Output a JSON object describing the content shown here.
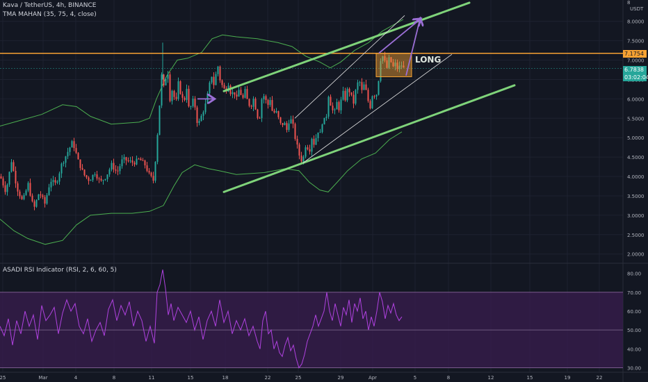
{
  "header": {
    "symbol_line": "Kava / TetherUS, 4h, BINANCE",
    "indicator_line": "TMA MAHAN (35, 75, 4, close)",
    "rsi_line": "ASADI RSI Indicator (RSI, 2, 6, 60, 5)"
  },
  "currency_label": "USDT",
  "annotation_text": "LONG",
  "price_labels": {
    "resistance": "7.1754",
    "last": "6.7838",
    "countdown": "03:02:04"
  },
  "colors": {
    "background": "#131722",
    "up_candle": "#26a69a",
    "down_candle": "#ef5350",
    "envelope": "#4caf50",
    "trendline": "#7fd37a",
    "resistance": "#f7a233",
    "arrow": "#9b6fd6",
    "rsi_line": "#b042e0",
    "rsi_band": "#3a1d4f"
  },
  "chart_data": [
    {
      "type": "candlestick",
      "title": "",
      "x_ticks": [
        "25",
        "Mar",
        "4",
        "8",
        "11",
        "15",
        "18",
        "22",
        "25",
        "29",
        "Apr",
        "5",
        "8",
        "12",
        "15",
        "19",
        "22"
      ],
      "y_ticks": [
        "2.0000",
        "2.5000",
        "3.0000",
        "3.5000",
        "4.0000",
        "4.5000",
        "5.0000",
        "5.5000",
        "6.0000",
        "6.5000",
        "7.0000",
        "7.5000",
        "8.0000",
        "8"
      ],
      "ylim": [
        1.78,
        8.55
      ],
      "resistance_level": 7.1754,
      "last_price": 6.7838,
      "price_path": [
        [
          0,
          4.0
        ],
        [
          8,
          3.6
        ],
        [
          16,
          4.4
        ],
        [
          24,
          3.7
        ],
        [
          32,
          3.35
        ],
        [
          40,
          3.8
        ],
        [
          48,
          3.15
        ],
        [
          56,
          3.6
        ],
        [
          64,
          3.3
        ],
        [
          72,
          3.9
        ],
        [
          80,
          3.8
        ],
        [
          88,
          4.3
        ],
        [
          96,
          4.6
        ],
        [
          104,
          4.9
        ],
        [
          112,
          4.4
        ],
        [
          120,
          4.05
        ],
        [
          128,
          3.9
        ],
        [
          136,
          4.1
        ],
        [
          144,
          3.85
        ],
        [
          152,
          4.0
        ],
        [
          160,
          4.3
        ],
        [
          168,
          4.1
        ],
        [
          176,
          4.45
        ],
        [
          184,
          4.4
        ],
        [
          192,
          4.35
        ],
        [
          200,
          4.45
        ],
        [
          208,
          4.3
        ],
        [
          214,
          4.05
        ],
        [
          220,
          3.9
        ],
        [
          224,
          4.6
        ],
        [
          228,
          5.6
        ],
        [
          232,
          6.6
        ],
        [
          236,
          6.2
        ],
        [
          240,
          6.9
        ],
        [
          244,
          6.0
        ],
        [
          248,
          6.3
        ],
        [
          252,
          5.8
        ],
        [
          256,
          6.4
        ],
        [
          260,
          6.1
        ],
        [
          264,
          5.9
        ],
        [
          268,
          6.3
        ],
        [
          272,
          5.6
        ],
        [
          276,
          6.0
        ],
        [
          280,
          5.8
        ],
        [
          284,
          5.3
        ],
        [
          288,
          5.5
        ],
        [
          292,
          5.7
        ],
        [
          296,
          5.9
        ],
        [
          300,
          6.3
        ],
        [
          304,
          6.6
        ],
        [
          308,
          6.3
        ],
        [
          312,
          6.95
        ],
        [
          316,
          6.5
        ],
        [
          320,
          6.3
        ],
        [
          324,
          6.2
        ],
        [
          328,
          6.4
        ],
        [
          332,
          6.1
        ],
        [
          336,
          6.2
        ],
        [
          340,
          6.0
        ],
        [
          344,
          6.3
        ],
        [
          348,
          5.95
        ],
        [
          352,
          6.2
        ],
        [
          356,
          5.9
        ],
        [
          360,
          5.8
        ],
        [
          364,
          6.0
        ],
        [
          368,
          5.7
        ],
        [
          372,
          5.4
        ],
        [
          376,
          6.0
        ],
        [
          380,
          6.1
        ],
        [
          384,
          5.8
        ],
        [
          388,
          6.0
        ],
        [
          392,
          5.6
        ],
        [
          396,
          5.7
        ],
        [
          400,
          5.5
        ],
        [
          404,
          5.3
        ],
        [
          408,
          5.4
        ],
        [
          412,
          5.2
        ],
        [
          416,
          5.5
        ],
        [
          420,
          5.4
        ],
        [
          424,
          5.0
        ],
        [
          428,
          4.7
        ],
        [
          432,
          4.4
        ],
        [
          436,
          4.5
        ],
        [
          440,
          4.9
        ],
        [
          444,
          4.6
        ],
        [
          448,
          5.0
        ],
        [
          452,
          4.8
        ],
        [
          456,
          5.2
        ],
        [
          460,
          5.1
        ],
        [
          464,
          5.5
        ],
        [
          468,
          5.4
        ],
        [
          472,
          6.1
        ],
        [
          476,
          5.8
        ],
        [
          480,
          5.6
        ],
        [
          484,
          5.9
        ],
        [
          488,
          5.7
        ],
        [
          492,
          6.2
        ],
        [
          496,
          6.0
        ],
        [
          500,
          6.3
        ],
        [
          504,
          6.1
        ],
        [
          508,
          5.9
        ],
        [
          512,
          6.3
        ],
        [
          516,
          6.5
        ],
        [
          520,
          6.2
        ],
        [
          524,
          6.4
        ],
        [
          528,
          6.0
        ],
        [
          532,
          5.8
        ],
        [
          536,
          6.2
        ],
        [
          540,
          6.0
        ],
        [
          544,
          6.5
        ],
        [
          548,
          7.2
        ],
        [
          552,
          7.0
        ],
        [
          556,
          6.8
        ],
        [
          560,
          7.1
        ],
        [
          564,
          6.8
        ],
        [
          568,
          6.9
        ],
        [
          572,
          6.75
        ],
        [
          576,
          6.9
        ],
        [
          580,
          6.78
        ]
      ],
      "envelope_upper": [
        [
          0,
          5.3
        ],
        [
          30,
          5.45
        ],
        [
          60,
          5.6
        ],
        [
          90,
          5.85
        ],
        [
          110,
          5.8
        ],
        [
          130,
          5.55
        ],
        [
          160,
          5.35
        ],
        [
          200,
          5.4
        ],
        [
          215,
          5.5
        ],
        [
          225,
          6.0
        ],
        [
          240,
          6.6
        ],
        [
          255,
          7.0
        ],
        [
          270,
          7.05
        ],
        [
          290,
          7.2
        ],
        [
          305,
          7.55
        ],
        [
          320,
          7.65
        ],
        [
          340,
          7.6
        ],
        [
          370,
          7.55
        ],
        [
          400,
          7.45
        ],
        [
          420,
          7.35
        ],
        [
          440,
          7.1
        ],
        [
          460,
          6.95
        ],
        [
          475,
          6.8
        ],
        [
          490,
          6.95
        ],
        [
          510,
          7.25
        ],
        [
          530,
          7.45
        ],
        [
          550,
          7.75
        ],
        [
          570,
          7.95
        ],
        [
          580,
          8.05
        ]
      ],
      "envelope_lower": [
        [
          0,
          2.9
        ],
        [
          20,
          2.6
        ],
        [
          40,
          2.4
        ],
        [
          65,
          2.25
        ],
        [
          90,
          2.35
        ],
        [
          110,
          2.75
        ],
        [
          130,
          3.0
        ],
        [
          160,
          3.05
        ],
        [
          190,
          3.05
        ],
        [
          215,
          3.1
        ],
        [
          235,
          3.25
        ],
        [
          250,
          3.75
        ],
        [
          262,
          4.1
        ],
        [
          280,
          4.3
        ],
        [
          300,
          4.2
        ],
        [
          315,
          4.15
        ],
        [
          340,
          4.05
        ],
        [
          380,
          4.1
        ],
        [
          410,
          4.2
        ],
        [
          430,
          4.15
        ],
        [
          445,
          3.85
        ],
        [
          460,
          3.65
        ],
        [
          472,
          3.6
        ],
        [
          485,
          3.85
        ],
        [
          500,
          4.15
        ],
        [
          520,
          4.45
        ],
        [
          540,
          4.6
        ],
        [
          560,
          4.95
        ],
        [
          578,
          5.15
        ]
      ],
      "annotations": [
        {
          "kind": "trendline",
          "from": [
            322,
            6.2
          ],
          "to": [
            675,
            8.48
          ]
        },
        {
          "kind": "trendline",
          "from": [
            322,
            3.6
          ],
          "to": [
            740,
            6.35
          ]
        },
        {
          "kind": "channel",
          "from": [
            424,
            5.5
          ],
          "to": [
            582,
            8.15
          ]
        },
        {
          "kind": "channel",
          "from": [
            436,
            4.35
          ],
          "to": [
            650,
            7.15
          ]
        },
        {
          "kind": "zone",
          "from": [
            541,
            7.18
          ],
          "to": [
            592,
            6.57
          ]
        },
        {
          "kind": "arrow",
          "from": [
            545,
            7.18
          ],
          "to": [
            604,
            8.05
          ]
        },
        {
          "kind": "arrow",
          "from": [
            584,
            6.6
          ],
          "to": [
            604,
            8.05
          ]
        },
        {
          "kind": "arrow",
          "from": [
            284,
            6.0
          ],
          "to": [
            307,
            6.0
          ]
        }
      ]
    },
    {
      "type": "line",
      "title": "",
      "y_ticks": [
        "30.00",
        "40.00",
        "50.00",
        "60.00",
        "70.00",
        "80.00"
      ],
      "ylim": [
        28,
        85
      ],
      "band": [
        30,
        70
      ],
      "midline": 50,
      "series": [
        {
          "values": [
            [
              0,
              52
            ],
            [
              6,
              47
            ],
            [
              12,
              56
            ],
            [
              18,
              42
            ],
            [
              24,
              55
            ],
            [
              30,
              48
            ],
            [
              36,
              60
            ],
            [
              42,
              52
            ],
            [
              48,
              58
            ],
            [
              54,
              45
            ],
            [
              60,
              63
            ],
            [
              66,
              55
            ],
            [
              72,
              58
            ],
            [
              78,
              62
            ],
            [
              84,
              48
            ],
            [
              90,
              59
            ],
            [
              96,
              66
            ],
            [
              102,
              60
            ],
            [
              108,
              64
            ],
            [
              114,
              52
            ],
            [
              120,
              48
            ],
            [
              126,
              56
            ],
            [
              132,
              44
            ],
            [
              138,
              50
            ],
            [
              144,
              54
            ],
            [
              150,
              47
            ],
            [
              156,
              61
            ],
            [
              162,
              66
            ],
            [
              168,
              55
            ],
            [
              174,
              63
            ],
            [
              180,
              58
            ],
            [
              186,
              65
            ],
            [
              192,
              52
            ],
            [
              198,
              60
            ],
            [
              204,
              55
            ],
            [
              210,
              44
            ],
            [
              216,
              52
            ],
            [
              222,
              43
            ],
            [
              226,
              70
            ],
            [
              230,
              74
            ],
            [
              234,
              82
            ],
            [
              238,
              72
            ],
            [
              242,
              58
            ],
            [
              246,
              64
            ],
            [
              250,
              55
            ],
            [
              256,
              62
            ],
            [
              262,
              58
            ],
            [
              268,
              54
            ],
            [
              274,
              60
            ],
            [
              280,
              50
            ],
            [
              286,
              57
            ],
            [
              292,
              45
            ],
            [
              298,
              55
            ],
            [
              304,
              60
            ],
            [
              310,
              52
            ],
            [
              316,
              66
            ],
            [
              322,
              54
            ],
            [
              328,
              60
            ],
            [
              334,
              48
            ],
            [
              340,
              55
            ],
            [
              346,
              50
            ],
            [
              352,
              56
            ],
            [
              358,
              47
            ],
            [
              364,
              52
            ],
            [
              370,
              44
            ],
            [
              374,
              40
            ],
            [
              378,
              55
            ],
            [
              382,
              60
            ],
            [
              386,
              48
            ],
            [
              390,
              50
            ],
            [
              394,
              40
            ],
            [
              398,
              44
            ],
            [
              402,
              38
            ],
            [
              406,
              36
            ],
            [
              410,
              42
            ],
            [
              414,
              46
            ],
            [
              418,
              39
            ],
            [
              422,
              42
            ],
            [
              426,
              35
            ],
            [
              430,
              30
            ],
            [
              434,
              32
            ],
            [
              438,
              37
            ],
            [
              442,
              44
            ],
            [
              446,
              48
            ],
            [
              450,
              52
            ],
            [
              454,
              58
            ],
            [
              458,
              52
            ],
            [
              462,
              56
            ],
            [
              466,
              60
            ],
            [
              470,
              70
            ],
            [
              474,
              60
            ],
            [
              478,
              55
            ],
            [
              482,
              64
            ],
            [
              486,
              58
            ],
            [
              490,
              52
            ],
            [
              494,
              62
            ],
            [
              498,
              58
            ],
            [
              502,
              66
            ],
            [
              506,
              54
            ],
            [
              510,
              64
            ],
            [
              514,
              60
            ],
            [
              518,
              67
            ],
            [
              522,
              56
            ],
            [
              526,
              60
            ],
            [
              530,
              50
            ],
            [
              534,
              57
            ],
            [
              538,
              52
            ],
            [
              542,
              60
            ],
            [
              546,
              70
            ],
            [
              550,
              65
            ],
            [
              554,
              56
            ],
            [
              558,
              63
            ],
            [
              562,
              59
            ],
            [
              566,
              64
            ],
            [
              570,
              58
            ],
            [
              574,
              55
            ],
            [
              578,
              57
            ]
          ]
        }
      ]
    }
  ]
}
